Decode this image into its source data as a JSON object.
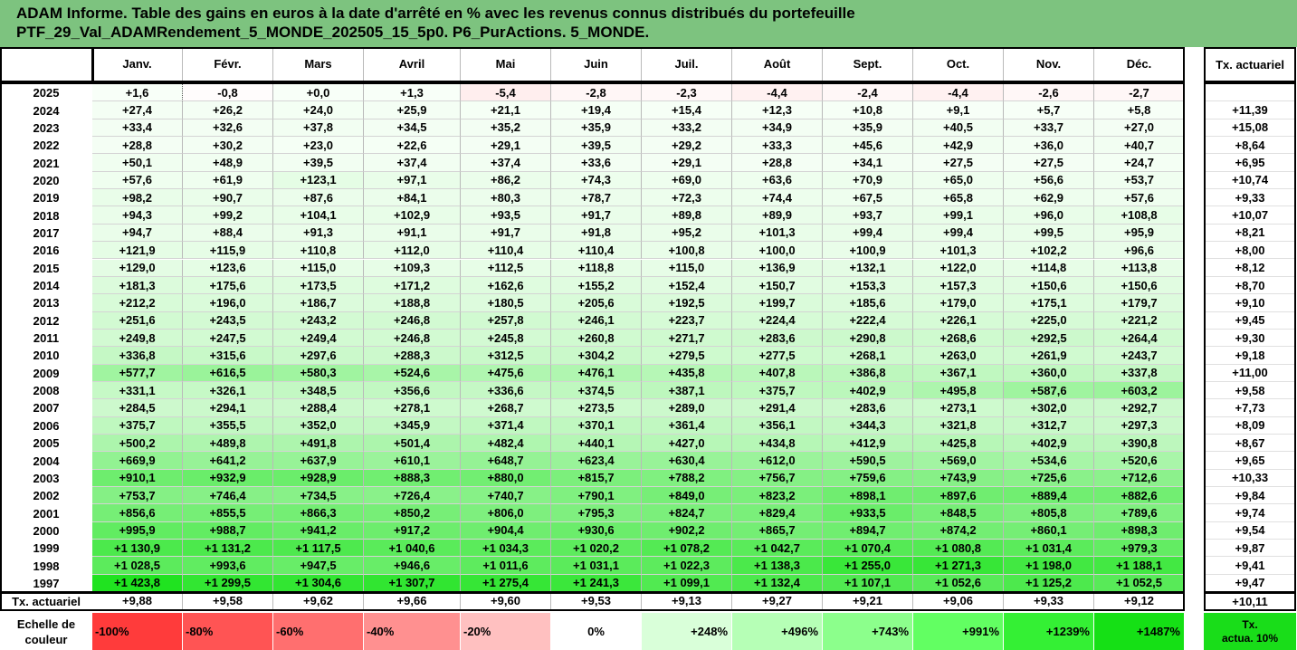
{
  "header": {
    "title_line1": "ADAM Informe. Table des gains en euros à la date d'arrêté en % avec les revenus connus distribués du portefeuille",
    "title_line2": "PTF_29_Val_ADAMRendement_5_MONDE_202505_15_5p0. P6_PurActions. 5_MONDE."
  },
  "chart_data": {
    "type": "table",
    "months": [
      "Janv.",
      "Févr.",
      "Mars",
      "Avril",
      "Mai",
      "Juin",
      "Juil.",
      "Août",
      "Sept.",
      "Oct.",
      "Nov.",
      "Déc."
    ],
    "rate_header": "Tx. actuariel",
    "rows": [
      {
        "year": "2025",
        "values": [
          "+1,6",
          "-0,8",
          "+0,0",
          "+1,3",
          "-5,4",
          "-2,8",
          "-2,3",
          "-4,4",
          "-2,4",
          "-4,4",
          "-2,6",
          "-2,7"
        ],
        "rate": ""
      },
      {
        "year": "2024",
        "values": [
          "+27,4",
          "+26,2",
          "+24,0",
          "+25,9",
          "+21,1",
          "+19,4",
          "+15,4",
          "+12,3",
          "+10,8",
          "+9,1",
          "+5,7",
          "+5,8"
        ],
        "rate": "+11,39"
      },
      {
        "year": "2023",
        "values": [
          "+33,4",
          "+32,6",
          "+37,8",
          "+34,5",
          "+35,2",
          "+35,9",
          "+33,2",
          "+34,9",
          "+35,9",
          "+40,5",
          "+33,7",
          "+27,0"
        ],
        "rate": "+15,08"
      },
      {
        "year": "2022",
        "values": [
          "+28,8",
          "+30,2",
          "+23,0",
          "+22,6",
          "+29,1",
          "+39,5",
          "+29,2",
          "+33,3",
          "+45,6",
          "+42,9",
          "+36,0",
          "+40,7"
        ],
        "rate": "+8,64"
      },
      {
        "year": "2021",
        "values": [
          "+50,1",
          "+48,9",
          "+39,5",
          "+37,4",
          "+37,4",
          "+33,6",
          "+29,1",
          "+28,8",
          "+34,1",
          "+27,5",
          "+27,5",
          "+24,7"
        ],
        "rate": "+6,95"
      },
      {
        "year": "2020",
        "values": [
          "+57,6",
          "+61,9",
          "+123,1",
          "+97,1",
          "+86,2",
          "+74,3",
          "+69,0",
          "+63,6",
          "+70,9",
          "+65,0",
          "+56,6",
          "+53,7"
        ],
        "rate": "+10,74"
      },
      {
        "year": "2019",
        "values": [
          "+98,2",
          "+90,7",
          "+87,6",
          "+84,1",
          "+80,3",
          "+78,7",
          "+72,3",
          "+74,4",
          "+67,5",
          "+65,8",
          "+62,9",
          "+57,6"
        ],
        "rate": "+9,33"
      },
      {
        "year": "2018",
        "values": [
          "+94,3",
          "+99,2",
          "+104,1",
          "+102,9",
          "+93,5",
          "+91,7",
          "+89,8",
          "+89,9",
          "+93,7",
          "+99,1",
          "+96,0",
          "+108,8"
        ],
        "rate": "+10,07"
      },
      {
        "year": "2017",
        "values": [
          "+94,7",
          "+88,4",
          "+91,3",
          "+91,1",
          "+91,7",
          "+91,8",
          "+95,2",
          "+101,3",
          "+99,4",
          "+99,4",
          "+99,5",
          "+95,9"
        ],
        "rate": "+8,21"
      },
      {
        "year": "2016",
        "values": [
          "+121,9",
          "+115,9",
          "+110,8",
          "+112,0",
          "+110,4",
          "+110,4",
          "+100,8",
          "+100,0",
          "+100,9",
          "+101,3",
          "+102,2",
          "+96,6"
        ],
        "rate": "+8,00"
      },
      {
        "year": "2015",
        "values": [
          "+129,0",
          "+123,6",
          "+115,0",
          "+109,3",
          "+112,5",
          "+118,8",
          "+115,0",
          "+136,9",
          "+132,1",
          "+122,0",
          "+114,8",
          "+113,8"
        ],
        "rate": "+8,12"
      },
      {
        "year": "2014",
        "values": [
          "+181,3",
          "+175,6",
          "+173,5",
          "+171,2",
          "+162,6",
          "+155,2",
          "+152,4",
          "+150,7",
          "+153,3",
          "+157,3",
          "+150,6",
          "+150,6"
        ],
        "rate": "+8,70"
      },
      {
        "year": "2013",
        "values": [
          "+212,2",
          "+196,0",
          "+186,7",
          "+188,8",
          "+180,5",
          "+205,6",
          "+192,5",
          "+199,7",
          "+185,6",
          "+179,0",
          "+175,1",
          "+179,7"
        ],
        "rate": "+9,10"
      },
      {
        "year": "2012",
        "values": [
          "+251,6",
          "+243,5",
          "+243,2",
          "+246,8",
          "+257,8",
          "+246,1",
          "+223,7",
          "+224,4",
          "+222,4",
          "+226,1",
          "+225,0",
          "+221,2"
        ],
        "rate": "+9,45"
      },
      {
        "year": "2011",
        "values": [
          "+249,8",
          "+247,5",
          "+249,4",
          "+246,8",
          "+245,8",
          "+260,8",
          "+271,7",
          "+283,6",
          "+290,8",
          "+268,6",
          "+292,5",
          "+264,4"
        ],
        "rate": "+9,30"
      },
      {
        "year": "2010",
        "values": [
          "+336,8",
          "+315,6",
          "+297,6",
          "+288,3",
          "+312,5",
          "+304,2",
          "+279,5",
          "+277,5",
          "+268,1",
          "+263,0",
          "+261,9",
          "+243,7"
        ],
        "rate": "+9,18"
      },
      {
        "year": "2009",
        "values": [
          "+577,7",
          "+616,5",
          "+580,3",
          "+524,6",
          "+475,6",
          "+476,1",
          "+435,8",
          "+407,8",
          "+386,8",
          "+367,1",
          "+360,0",
          "+337,8"
        ],
        "rate": "+11,00"
      },
      {
        "year": "2008",
        "values": [
          "+331,1",
          "+326,1",
          "+348,5",
          "+356,6",
          "+336,6",
          "+374,5",
          "+387,1",
          "+375,7",
          "+402,9",
          "+495,8",
          "+587,6",
          "+603,2"
        ],
        "rate": "+9,58"
      },
      {
        "year": "2007",
        "values": [
          "+284,5",
          "+294,1",
          "+288,4",
          "+278,1",
          "+268,7",
          "+273,5",
          "+289,0",
          "+291,4",
          "+283,6",
          "+273,1",
          "+302,0",
          "+292,7"
        ],
        "rate": "+7,73"
      },
      {
        "year": "2006",
        "values": [
          "+375,7",
          "+355,5",
          "+352,0",
          "+345,9",
          "+371,4",
          "+370,1",
          "+361,4",
          "+356,1",
          "+344,3",
          "+321,8",
          "+312,7",
          "+297,3"
        ],
        "rate": "+8,09"
      },
      {
        "year": "2005",
        "values": [
          "+500,2",
          "+489,8",
          "+491,8",
          "+501,4",
          "+482,4",
          "+440,1",
          "+427,0",
          "+434,8",
          "+412,9",
          "+425,8",
          "+402,9",
          "+390,8"
        ],
        "rate": "+8,67"
      },
      {
        "year": "2004",
        "values": [
          "+669,9",
          "+641,2",
          "+637,9",
          "+610,1",
          "+648,7",
          "+623,4",
          "+630,4",
          "+612,0",
          "+590,5",
          "+569,0",
          "+534,6",
          "+520,6"
        ],
        "rate": "+9,65"
      },
      {
        "year": "2003",
        "values": [
          "+910,1",
          "+932,9",
          "+928,9",
          "+888,3",
          "+880,0",
          "+815,7",
          "+788,2",
          "+756,7",
          "+759,6",
          "+743,9",
          "+725,6",
          "+712,6"
        ],
        "rate": "+10,33"
      },
      {
        "year": "2002",
        "values": [
          "+753,7",
          "+746,4",
          "+734,5",
          "+726,4",
          "+740,7",
          "+790,1",
          "+849,0",
          "+823,2",
          "+898,1",
          "+897,6",
          "+889,4",
          "+882,6"
        ],
        "rate": "+9,84"
      },
      {
        "year": "2001",
        "values": [
          "+856,6",
          "+855,5",
          "+866,3",
          "+850,2",
          "+806,0",
          "+795,3",
          "+824,7",
          "+829,4",
          "+933,5",
          "+848,5",
          "+805,8",
          "+789,6"
        ],
        "rate": "+9,74"
      },
      {
        "year": "2000",
        "values": [
          "+995,9",
          "+988,7",
          "+941,2",
          "+917,2",
          "+904,4",
          "+930,6",
          "+902,2",
          "+865,7",
          "+894,7",
          "+874,2",
          "+860,1",
          "+898,3"
        ],
        "rate": "+9,54"
      },
      {
        "year": "1999",
        "values": [
          "+1 130,9",
          "+1 131,2",
          "+1 117,5",
          "+1 040,6",
          "+1 034,3",
          "+1 020,2",
          "+1 078,2",
          "+1 042,7",
          "+1 070,4",
          "+1 080,8",
          "+1 031,4",
          "+979,3"
        ],
        "rate": "+9,87"
      },
      {
        "year": "1998",
        "values": [
          "+1 028,5",
          "+993,6",
          "+947,5",
          "+946,6",
          "+1 011,6",
          "+1 031,1",
          "+1 022,3",
          "+1 138,3",
          "+1 255,0",
          "+1 271,3",
          "+1 198,0",
          "+1 188,1"
        ],
        "rate": "+9,41"
      },
      {
        "year": "1997",
        "values": [
          "+1 423,8",
          "+1 299,5",
          "+1 304,6",
          "+1 307,7",
          "+1 275,4",
          "+1 241,3",
          "+1 099,1",
          "+1 132,4",
          "+1 107,1",
          "+1 052,6",
          "+1 125,2",
          "+1 052,5"
        ],
        "rate": "+9,47"
      }
    ],
    "footer": {
      "label": "Tx. actuariel",
      "values": [
        "+9,88",
        "+9,58",
        "+9,62",
        "+9,66",
        "+9,60",
        "+9,53",
        "+9,13",
        "+9,27",
        "+9,21",
        "+9,06",
        "+9,33",
        "+9,12"
      ],
      "total": "+10,11"
    },
    "color_scale": {
      "label_line1": "Echelle de",
      "label_line2": "couleur",
      "stops": [
        "-100%",
        "-80%",
        "-60%",
        "-40%",
        "-20%",
        "0%",
        "+248%",
        "+496%",
        "+743%",
        "+991%",
        "+1239%",
        "+1487%"
      ],
      "stop_colors": [
        "#ff3b3b",
        "#ff5454",
        "#ff6f6f",
        "#ff9090",
        "#ffc0c0",
        "#ffffff",
        "#d9ffd9",
        "#b6ffb6",
        "#8cff8c",
        "#62ff62",
        "#34f034",
        "#15e015"
      ],
      "rate_label_line1": "Tx.",
      "rate_label_line2": "actua. 10%",
      "rate_color": "#19dd19"
    },
    "max_gain_for_scale": 1487
  }
}
